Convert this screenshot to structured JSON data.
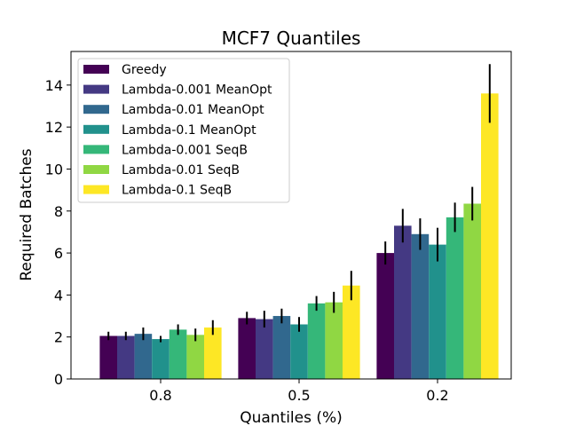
{
  "chart_data": {
    "type": "bar",
    "title": "MCF7 Quantiles",
    "xlabel": "Quantiles (%)",
    "ylabel": "Required Batches",
    "categories": [
      "0.8",
      "0.5",
      "0.2"
    ],
    "ylim": [
      0,
      15.6
    ],
    "yticks": [
      0,
      2,
      4,
      6,
      8,
      10,
      12,
      14
    ],
    "grid": false,
    "legend_position": "top-left",
    "series": [
      {
        "name": "Greedy",
        "color": "#440154",
        "values": [
          2.05,
          2.9,
          6.0
        ],
        "errors": [
          0.2,
          0.3,
          0.55
        ]
      },
      {
        "name": "Lambda-0.001 MeanOpt",
        "color": "#443983",
        "values": [
          2.05,
          2.85,
          7.3
        ],
        "errors": [
          0.2,
          0.4,
          0.8
        ]
      },
      {
        "name": "Lambda-0.01 MeanOpt",
        "color": "#31688e",
        "values": [
          2.15,
          3.0,
          6.9
        ],
        "errors": [
          0.3,
          0.35,
          0.75
        ]
      },
      {
        "name": "Lambda-0.1 MeanOpt",
        "color": "#21918c",
        "values": [
          1.9,
          2.6,
          6.4
        ],
        "errors": [
          0.15,
          0.35,
          0.8
        ]
      },
      {
        "name": "Lambda-0.001 SeqB",
        "color": "#35b779",
        "values": [
          2.35,
          3.6,
          7.7
        ],
        "errors": [
          0.25,
          0.35,
          0.7
        ]
      },
      {
        "name": "Lambda-0.01 SeqB",
        "color": "#90d743",
        "values": [
          2.1,
          3.65,
          8.35
        ],
        "errors": [
          0.3,
          0.5,
          0.8
        ]
      },
      {
        "name": "Lambda-0.1 SeqB",
        "color": "#fde725",
        "values": [
          2.45,
          4.45,
          13.6
        ],
        "errors": [
          0.35,
          0.7,
          1.4
        ]
      }
    ]
  }
}
